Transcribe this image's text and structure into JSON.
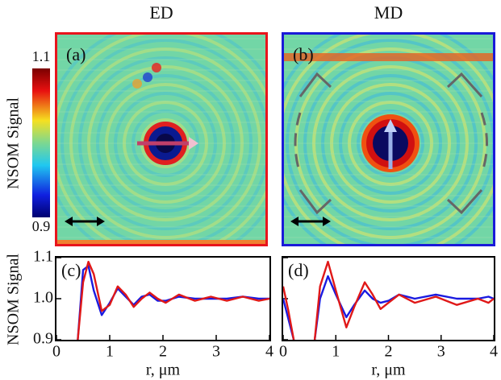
{
  "chart_data": [
    {
      "type": "image",
      "title": "ED",
      "label": "(a)",
      "color": "#e8141c",
      "colorbar": {
        "label": "NSOM Signal",
        "clim": [
          0.9,
          1.1
        ]
      }
    },
    {
      "type": "image",
      "title": "MD",
      "label": "(b)",
      "color": "#1a1ad8"
    },
    {
      "type": "line",
      "label": "(c)",
      "ylabel": "NSOM Signal",
      "xlabel": "r, μm",
      "xlim": [
        0,
        4
      ],
      "ylim": [
        0.9,
        1.1
      ],
      "xticks": [
        0,
        1,
        2,
        3,
        4
      ],
      "yticks": [
        0.9,
        {
          "value": 1.0,
          "label": "1.0"
        },
        1.1
      ],
      "ytick_labels": true,
      "x": [
        0.4,
        0.5,
        0.6,
        0.7,
        0.85,
        1.0,
        1.15,
        1.3,
        1.45,
        1.6,
        1.75,
        1.9,
        2.05,
        2.3,
        2.6,
        2.9,
        3.2,
        3.5,
        3.8,
        4.0
      ],
      "series": [
        {
          "color": "#1a1ae0",
          "values": [
            0.9,
            1.07,
            1.08,
            1.02,
            0.96,
            0.99,
            1.025,
            1.005,
            0.985,
            1.005,
            1.01,
            0.995,
            0.995,
            1.005,
            1.0,
            1.0,
            1.0,
            1.005,
            1.0,
            1.0
          ]
        },
        {
          "color": "#e01818",
          "values": [
            0.9,
            1.04,
            1.09,
            1.06,
            0.97,
            0.985,
            1.03,
            1.01,
            0.98,
            1.0,
            1.015,
            1.0,
            0.99,
            1.01,
            0.995,
            1.005,
            0.995,
            1.005,
            0.995,
            1.0
          ]
        }
      ]
    },
    {
      "type": "line",
      "label": "(d)",
      "xlabel": "r, μm",
      "xlim": [
        0,
        4
      ],
      "ylim": [
        0.9,
        1.1
      ],
      "xticks": [
        0,
        1,
        2,
        3,
        4
      ],
      "yticks": [
        0.9,
        1,
        1.1
      ],
      "ytick_labels": false,
      "x": [
        0,
        0.1,
        0.2,
        0.25,
        0.6,
        0.7,
        0.85,
        1.0,
        1.2,
        1.35,
        1.55,
        1.7,
        1.85,
        2.0,
        2.2,
        2.5,
        2.9,
        3.3,
        3.7,
        3.9,
        4.0
      ],
      "series": [
        {
          "color": "#1a1ae0",
          "values": [
            1.0,
            0.95,
            0.9,
            null,
            0.9,
            1.0,
            1.055,
            1.01,
            0.955,
            0.985,
            1.02,
            1.0,
            0.99,
            0.995,
            1.01,
            1.0,
            1.01,
            1.0,
            1.0,
            1.005,
            1.0
          ]
        },
        {
          "color": "#e01818",
          "values": [
            1.03,
            0.97,
            0.9,
            null,
            0.9,
            1.03,
            1.09,
            1.02,
            0.93,
            0.98,
            1.04,
            1.01,
            0.975,
            0.99,
            1.01,
            0.99,
            1.005,
            0.985,
            1.0,
            0.99,
            1.0
          ]
        }
      ]
    }
  ]
}
